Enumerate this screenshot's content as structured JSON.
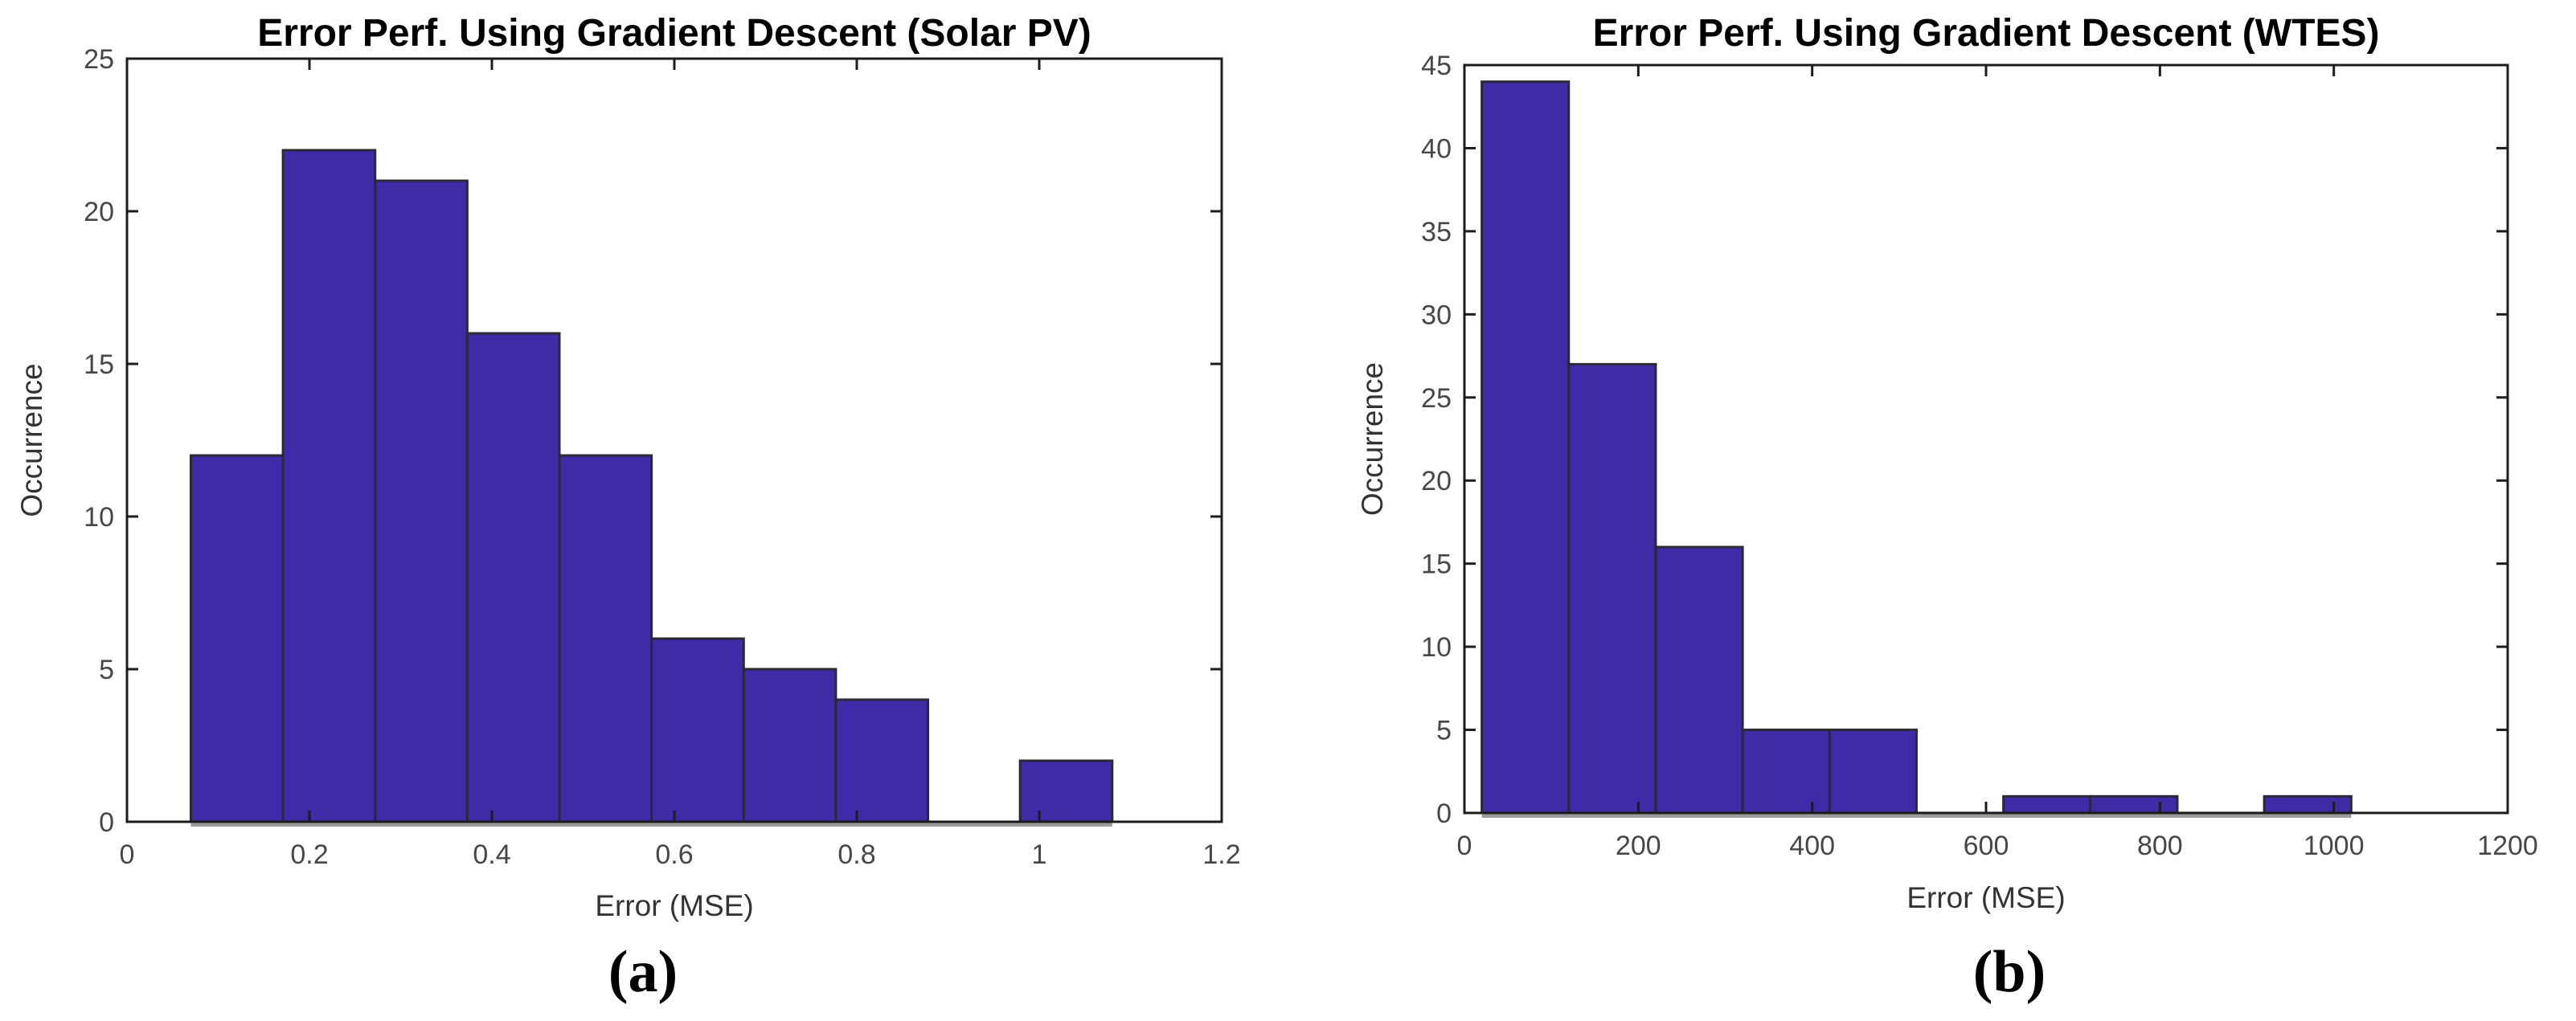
{
  "figure": {
    "captions": [
      "(a)",
      "(b)"
    ]
  },
  "colors": {
    "bar_fill": "#3E2BA8",
    "bar_edge": "#2A2A35",
    "bar_shadow": "#9B9B9B",
    "axis_line": "#1C1C1C",
    "tick_label": "#474747",
    "axis_label": "#333333",
    "title": "#000000",
    "background": "#FFFFFF"
  },
  "chart_data": [
    {
      "type": "bar",
      "subtype": "histogram",
      "title": "Error Perf. Using Gradient Descent (Solar PV)",
      "xlabel": "Error (MSE)",
      "ylabel": "Occurrence",
      "caption": "(a)",
      "bin_start": 0.07,
      "bin_width": 0.101,
      "counts": [
        12,
        22,
        21,
        16,
        12,
        6,
        5,
        4,
        0,
        2
      ],
      "xlim": [
        0,
        1.2
      ],
      "ylim": [
        0,
        25
      ],
      "xticks": [
        0,
        0.2,
        0.4,
        0.6,
        0.8,
        1,
        1.2
      ],
      "xtick_labels": [
        "0",
        "0.2",
        "0.4",
        "0.6",
        "0.8",
        "1",
        "1.2"
      ],
      "yticks": [
        0,
        5,
        10,
        15,
        20,
        25
      ],
      "ytick_labels": [
        "0",
        "5",
        "10",
        "15",
        "20",
        "25"
      ],
      "grid": false,
      "legend": null
    },
    {
      "type": "bar",
      "subtype": "histogram",
      "title": "Error Perf. Using Gradient Descent (WTES)",
      "xlabel": "Error (MSE)",
      "ylabel": "Occurrence",
      "caption": "(b)",
      "bin_start": 20,
      "bin_width": 100,
      "counts": [
        44,
        27,
        16,
        5,
        5,
        0,
        1,
        1,
        0,
        1
      ],
      "xlim": [
        0,
        1200
      ],
      "ylim": [
        0,
        45
      ],
      "xticks": [
        0,
        200,
        400,
        600,
        800,
        1000,
        1200
      ],
      "xtick_labels": [
        "0",
        "200",
        "400",
        "600",
        "800",
        "1000",
        "1200"
      ],
      "yticks": [
        0,
        5,
        10,
        15,
        20,
        25,
        30,
        35,
        40,
        45
      ],
      "ytick_labels": [
        "0",
        "5",
        "10",
        "15",
        "20",
        "25",
        "30",
        "35",
        "40",
        "45"
      ],
      "grid": false,
      "legend": null
    }
  ]
}
